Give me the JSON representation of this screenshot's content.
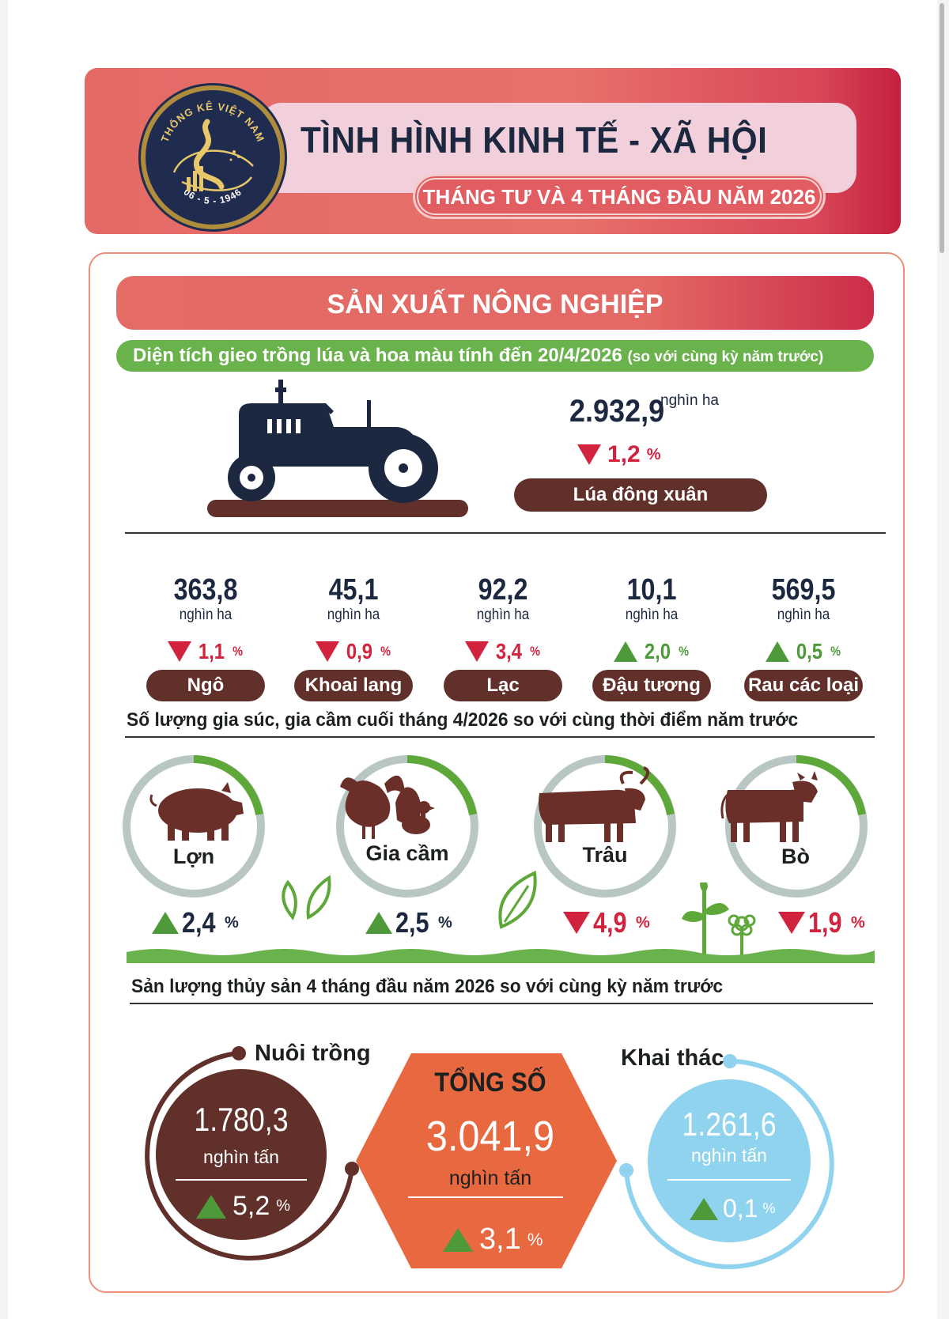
{
  "header": {
    "logo_text_top": "THỐNG KÊ VIỆT NAM",
    "logo_text_bottom": "06 - 5 - 1946",
    "title": "TÌNH HÌNH KINH TẾ - XÃ HỘI",
    "subtitle": "THÁNG TƯ VÀ 4 THÁNG ĐẦU NĂM 2026"
  },
  "section": {
    "title": "SẢN XUẤT NÔNG NGHIỆP",
    "planting_heading": "Diện tích gieo trồng lúa và hoa màu tính đến 20/4/2026",
    "planting_heading_note": "(so với cùng kỳ năm trước)"
  },
  "rice": {
    "value": "2.932,9",
    "unit": "nghìn ha",
    "change": "1,2",
    "change_unit": "%",
    "direction": "down",
    "label": "Lúa đông xuân"
  },
  "crops": [
    {
      "name": "Ngô",
      "value": "363,8",
      "unit": "nghìn ha",
      "change": "1,1",
      "change_unit": "%",
      "direction": "down"
    },
    {
      "name": "Khoai lang",
      "value": "45,1",
      "unit": "nghìn ha",
      "change": "0,9",
      "change_unit": "%",
      "direction": "down"
    },
    {
      "name": "Lạc",
      "value": "92,2",
      "unit": "nghìn ha",
      "change": "3,4",
      "change_unit": "%",
      "direction": "down"
    },
    {
      "name": "Đậu tương",
      "value": "10,1",
      "unit": "nghìn ha",
      "change": "2,0",
      "change_unit": "%",
      "direction": "up"
    },
    {
      "name": "Rau các loại",
      "value": "569,5",
      "unit": "nghìn ha",
      "change": "0,5",
      "change_unit": "%",
      "direction": "up"
    }
  ],
  "livestock": {
    "heading": "Số lượng gia súc, gia cầm cuối tháng 4/2026 so với cùng thời điểm năm trước",
    "items": [
      {
        "name": "Lợn",
        "change": "2,4",
        "change_unit": "%",
        "direction": "up"
      },
      {
        "name": "Gia cầm",
        "change": "2,5",
        "change_unit": "%",
        "direction": "up"
      },
      {
        "name": "Trâu",
        "change": "4,9",
        "change_unit": "%",
        "direction": "down"
      },
      {
        "name": "Bò",
        "change": "1,9",
        "change_unit": "%",
        "direction": "down"
      }
    ]
  },
  "fishery": {
    "heading": "Sản lượng thủy sản 4 tháng đầu năm 2026 so với cùng kỳ năm trước",
    "aquaculture": {
      "label": "Nuôi trồng",
      "value": "1.780,3",
      "unit": "nghìn tấn",
      "change": "5,2",
      "change_unit": "%",
      "direction": "up"
    },
    "total": {
      "label": "TỔNG SỐ",
      "value": "3.041,9",
      "unit": "nghìn tấn",
      "change": "3,1",
      "change_unit": "%",
      "direction": "up"
    },
    "capture": {
      "label": "Khai thác",
      "value": "1.261,6",
      "unit": "nghìn tấn",
      "change": "0,1",
      "change_unit": "%",
      "direction": "up"
    }
  },
  "colors": {
    "navy": "#1c2740",
    "brown": "#61302a",
    "red": "#d1233d",
    "green": "#4e9a3a",
    "coral": "#e4645e",
    "orange": "#e8683f",
    "lightblue": "#8fd3ef",
    "ring_grey": "#b9c7c4",
    "ring_green": "#5ea83a"
  },
  "icons": [
    "tractor-icon",
    "pig-icon",
    "chicken-icon",
    "buffalo-icon",
    "cow-icon",
    "leaf-icon",
    "plant-icon",
    "flower-icon",
    "down-triangle-icon",
    "up-triangle-icon"
  ]
}
